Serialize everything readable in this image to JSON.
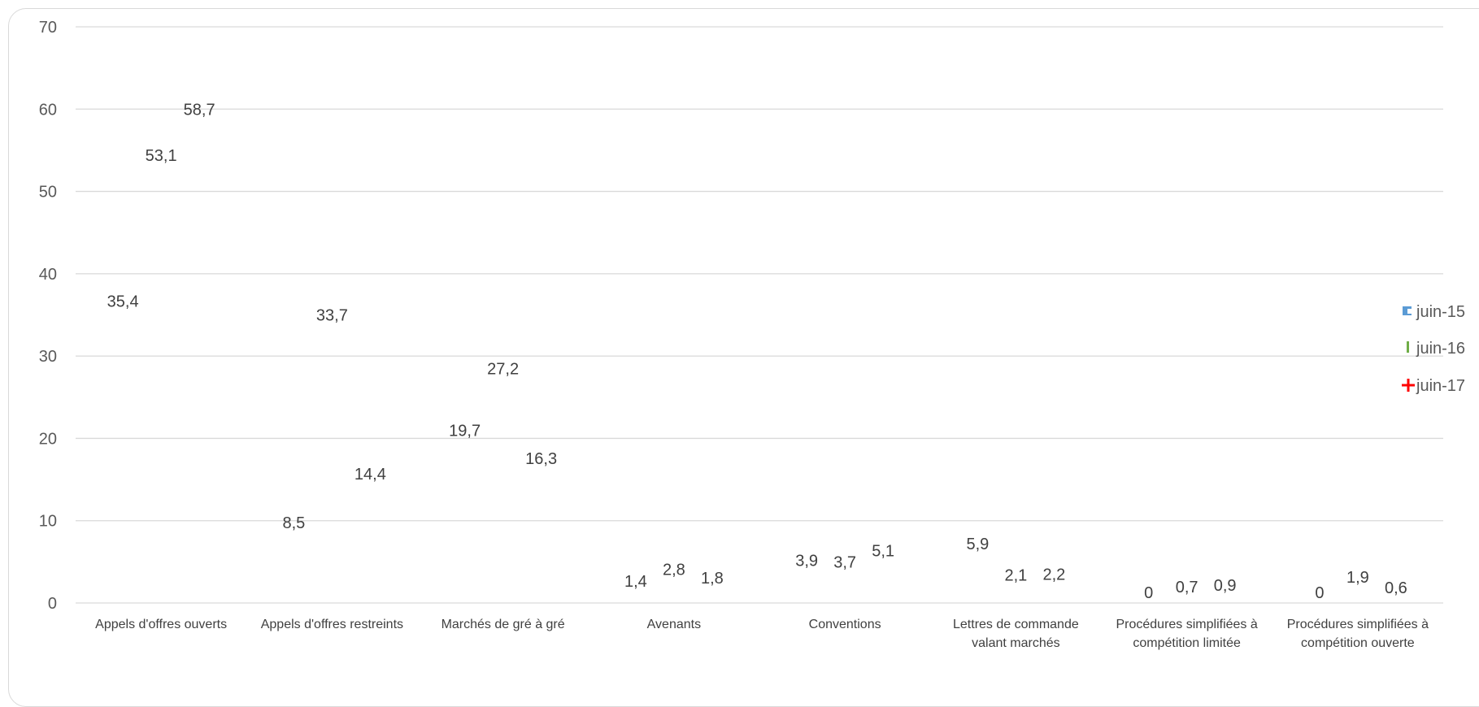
{
  "chart_data": {
    "type": "scatter",
    "categories": [
      [
        "Appels d'offres ouverts"
      ],
      [
        "Appels d'offres restreints"
      ],
      [
        "Marchés de gré à gré"
      ],
      [
        "Avenants"
      ],
      [
        "Conventions"
      ],
      [
        "Lettres de commande",
        "valant marchés"
      ],
      [
        "Procédures simplifiées à",
        "compétition limitée"
      ],
      [
        "Procédures simplifiées à",
        "compétition ouverte"
      ]
    ],
    "series": [
      {
        "name": "juin-15",
        "values": [
          35.4,
          8.5,
          19.7,
          1.4,
          3.9,
          5.9,
          0,
          0
        ],
        "labels": [
          "35,4",
          "8,5",
          "19,7",
          "1,4",
          "3,9",
          "5,9",
          "0",
          "0"
        ],
        "color": "#5b9bd5",
        "marker": "square"
      },
      {
        "name": "juin-16",
        "values": [
          53.1,
          33.7,
          27.2,
          2.8,
          3.7,
          2.1,
          0.7,
          1.9
        ],
        "labels": [
          "53,1",
          "33,7",
          "27,2",
          "2,8",
          "3,7",
          "2,1",
          "0,7",
          "1,9"
        ],
        "color": "#70ad47",
        "marker": "bar"
      },
      {
        "name": "juin-17",
        "values": [
          58.7,
          14.4,
          16.3,
          1.8,
          5.1,
          2.2,
          0.9,
          0.6
        ],
        "labels": [
          "58,7",
          "14,4",
          "16,3",
          "1,8",
          "5,1",
          "2,2",
          "0,9",
          "0,6"
        ],
        "color": "#ff0000",
        "marker": "plus"
      }
    ],
    "yticks": [
      "0",
      "10",
      "20",
      "30",
      "40",
      "50",
      "60",
      "70"
    ],
    "ylim": [
      0,
      70
    ],
    "grid": true,
    "legend": "right"
  }
}
